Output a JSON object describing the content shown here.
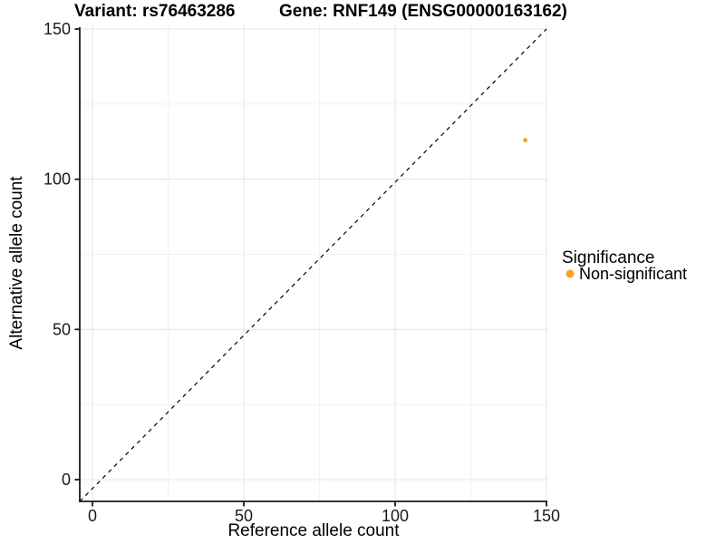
{
  "chart_data": {
    "type": "scatter",
    "title_left": "Variant: rs76463286",
    "title_right": "Gene: RNF149 (ENSG00000163162)",
    "xlabel": "Reference allele count",
    "ylabel": "Alternative allele count",
    "xlim": [
      0,
      150
    ],
    "ylim": [
      0,
      150
    ],
    "x_ticks": [
      "0",
      "50",
      "100",
      "150"
    ],
    "y_ticks": [
      "0",
      "50",
      "100",
      "150"
    ],
    "grid": "major gridlines at 0/50/100/150 and minor at 25/75/125, light gray, on white panel",
    "reference_line": {
      "type": "identity y=x",
      "style": "dashed",
      "color": "#000000"
    },
    "series": [
      {
        "name": "Non-significant",
        "color": "#F8A028",
        "points": [
          {
            "x": 143,
            "y": 113
          }
        ]
      }
    ],
    "legend": {
      "title": "Significance",
      "position": "right",
      "items": [
        {
          "label": "Non-significant",
          "color": "#F8A028"
        }
      ]
    }
  }
}
